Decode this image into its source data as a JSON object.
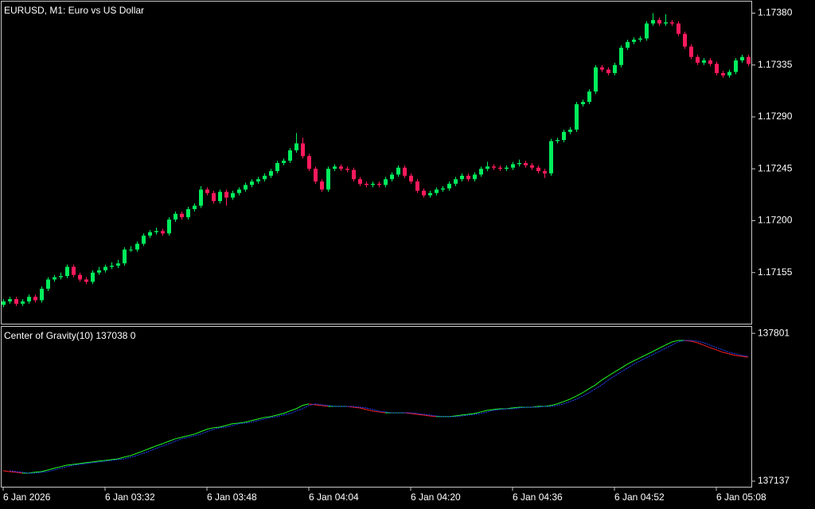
{
  "chart_data": [
    {
      "type": "candlestick",
      "title": "EURUSD, M1:  Euro vs US Dollar",
      "categories": [
        "6 Jan 2026",
        null,
        null,
        null,
        null,
        null,
        null,
        null,
        null,
        null,
        null,
        null,
        null,
        null,
        null,
        null,
        "6 Jan 03:32",
        null,
        null,
        null,
        null,
        null,
        null,
        null,
        null,
        null,
        null,
        null,
        null,
        null,
        null,
        null,
        "6 Jan 03:48",
        null,
        null,
        null,
        null,
        null,
        null,
        null,
        null,
        null,
        null,
        null,
        null,
        null,
        null,
        null,
        "6 Jan 04:04",
        null,
        null,
        null,
        null,
        null,
        null,
        null,
        null,
        null,
        null,
        null,
        null,
        null,
        null,
        null,
        "6 Jan 04:20",
        null,
        null,
        null,
        null,
        null,
        null,
        null,
        null,
        null,
        null,
        null,
        null,
        null,
        null,
        null,
        "6 Jan 04:36",
        null,
        null,
        null,
        null,
        null,
        null,
        null,
        null,
        null,
        null,
        null,
        null,
        null,
        null,
        null,
        "6 Jan 04:52",
        null,
        null,
        null,
        null,
        null,
        null,
        null,
        null,
        null,
        null,
        null,
        null,
        null,
        null,
        null,
        "6 Jan 05:08",
        null,
        null,
        null,
        null,
        null
      ],
      "open": [
        1.17127,
        1.1713,
        1.17132,
        1.17128,
        1.1713,
        1.17134,
        1.17131,
        1.17141,
        1.17149,
        1.17151,
        1.17152,
        1.1716,
        1.17153,
        1.17149,
        1.17147,
        1.17155,
        1.17157,
        1.1716,
        1.17161,
        1.17163,
        1.17175,
        1.17175,
        1.1718,
        1.17187,
        1.1719,
        1.17191,
        1.17189,
        1.17201,
        1.17206,
        1.17203,
        1.1721,
        1.17213,
        1.17227,
        1.17224,
        1.17217,
        1.17225,
        1.1722,
        1.17224,
        1.17227,
        1.17231,
        1.17234,
        1.17236,
        1.17239,
        1.17243,
        1.1725,
        1.17252,
        1.17261,
        1.17267,
        1.17256,
        1.17245,
        1.17234,
        1.17227,
        1.17245,
        1.17247,
        1.17245,
        1.17244,
        1.17236,
        1.17232,
        1.17231,
        1.17232,
        1.17231,
        1.17236,
        1.1724,
        1.17246,
        1.17239,
        1.17234,
        1.17226,
        1.17222,
        1.17224,
        1.17227,
        1.17228,
        1.17232,
        1.17236,
        1.17239,
        1.17236,
        1.1724,
        1.17245,
        1.17247,
        1.17246,
        1.17245,
        1.17246,
        1.17249,
        1.1725,
        1.17248,
        1.17246,
        1.17243,
        1.17241,
        1.17269,
        1.1727,
        1.17277,
        1.17279,
        1.17301,
        1.17303,
        1.17312,
        1.17333,
        1.17331,
        1.17328,
        1.17335,
        1.1735,
        1.17355,
        1.17357,
        1.17358,
        1.17371,
        1.17374,
        1.17371,
        1.17372,
        1.17371,
        1.17362,
        1.17351,
        1.17342,
        1.17337,
        1.17339,
        1.17336,
        1.17328,
        1.17326,
        1.17329,
        1.17339,
        1.17342
      ],
      "high": [
        1.17132,
        1.17134,
        1.17134,
        1.17132,
        1.17136,
        1.17136,
        1.17143,
        1.17151,
        1.17153,
        1.17155,
        1.17162,
        1.17162,
        1.17155,
        1.17151,
        1.17157,
        1.1716,
        1.17162,
        1.17164,
        1.17166,
        1.17177,
        1.17178,
        1.17182,
        1.17189,
        1.17192,
        1.17194,
        1.17193,
        1.17203,
        1.17208,
        1.17208,
        1.17212,
        1.17215,
        1.1723,
        1.17229,
        1.17226,
        1.17227,
        1.17227,
        1.17226,
        1.17229,
        1.17233,
        1.17236,
        1.17238,
        1.17241,
        1.17245,
        1.17252,
        1.17254,
        1.17263,
        1.17276,
        1.17272,
        1.17258,
        1.17247,
        1.17236,
        1.17247,
        1.17249,
        1.17249,
        1.17247,
        1.17246,
        1.17238,
        1.17234,
        1.17234,
        1.17234,
        1.17238,
        1.17242,
        1.17248,
        1.17248,
        1.17241,
        1.17236,
        1.17228,
        1.17226,
        1.17229,
        1.1723,
        1.17234,
        1.17238,
        1.17241,
        1.17241,
        1.17242,
        1.17247,
        1.17251,
        1.17249,
        1.17248,
        1.17248,
        1.17251,
        1.17253,
        1.17252,
        1.1725,
        1.17248,
        1.17245,
        1.17271,
        1.17272,
        1.17279,
        1.17281,
        1.17303,
        1.17305,
        1.17314,
        1.17335,
        1.17335,
        1.17333,
        1.17337,
        1.17352,
        1.17357,
        1.17359,
        1.1736,
        1.17373,
        1.1738,
        1.17376,
        1.17379,
        1.17374,
        1.17373,
        1.17364,
        1.17353,
        1.17344,
        1.17341,
        1.17341,
        1.17338,
        1.1733,
        1.17331,
        1.17341,
        1.17344,
        1.17344
      ],
      "low": [
        1.17125,
        1.17128,
        1.17126,
        1.17126,
        1.17128,
        1.17129,
        1.17129,
        1.17139,
        1.17147,
        1.17149,
        1.1715,
        1.17151,
        1.17147,
        1.17145,
        1.17145,
        1.17153,
        1.17155,
        1.17158,
        1.17159,
        1.17161,
        1.17173,
        1.17173,
        1.17178,
        1.17185,
        1.17188,
        1.17187,
        1.17187,
        1.17199,
        1.17201,
        1.17201,
        1.17208,
        1.17211,
        1.17222,
        1.17215,
        1.17215,
        1.17213,
        1.17218,
        1.17222,
        1.17225,
        1.17229,
        1.17232,
        1.17234,
        1.17237,
        1.17241,
        1.17248,
        1.1725,
        1.17259,
        1.17254,
        1.17243,
        1.17232,
        1.17225,
        1.17225,
        1.17243,
        1.17243,
        1.17242,
        1.17234,
        1.1723,
        1.17229,
        1.17229,
        1.17229,
        1.17229,
        1.17234,
        1.17238,
        1.17237,
        1.17232,
        1.17224,
        1.1722,
        1.1722,
        1.17222,
        1.17225,
        1.17226,
        1.1723,
        1.17234,
        1.17234,
        1.17234,
        1.17238,
        1.17243,
        1.17244,
        1.17243,
        1.17243,
        1.17244,
        1.17247,
        1.17246,
        1.17244,
        1.17241,
        1.17237,
        1.17239,
        1.17267,
        1.17268,
        1.17275,
        1.17277,
        1.17299,
        1.17301,
        1.1731,
        1.17329,
        1.17326,
        1.17326,
        1.17333,
        1.17348,
        1.17353,
        1.17355,
        1.17356,
        1.17369,
        1.17369,
        1.17369,
        1.17369,
        1.1736,
        1.17349,
        1.1734,
        1.17335,
        1.17335,
        1.17334,
        1.17326,
        1.17324,
        1.17324,
        1.17327,
        1.17337,
        1.17334
      ],
      "close": [
        1.1713,
        1.17132,
        1.17128,
        1.1713,
        1.17134,
        1.17131,
        1.17141,
        1.17149,
        1.17151,
        1.17152,
        1.1716,
        1.17153,
        1.17149,
        1.17147,
        1.17155,
        1.17157,
        1.1716,
        1.17161,
        1.17163,
        1.17175,
        1.17175,
        1.1718,
        1.17187,
        1.1719,
        1.17191,
        1.17189,
        1.17201,
        1.17206,
        1.17203,
        1.1721,
        1.17213,
        1.17227,
        1.17224,
        1.17217,
        1.17225,
        1.1722,
        1.17224,
        1.17227,
        1.17231,
        1.17234,
        1.17236,
        1.17239,
        1.17243,
        1.1725,
        1.17252,
        1.17261,
        1.17267,
        1.17256,
        1.17245,
        1.17234,
        1.17227,
        1.17245,
        1.17247,
        1.17245,
        1.17244,
        1.17236,
        1.17232,
        1.17231,
        1.17232,
        1.17231,
        1.17236,
        1.1724,
        1.17246,
        1.17239,
        1.17234,
        1.17226,
        1.17222,
        1.17224,
        1.17227,
        1.17228,
        1.17232,
        1.17236,
        1.17239,
        1.17236,
        1.1724,
        1.17245,
        1.17247,
        1.17246,
        1.17245,
        1.17246,
        1.17249,
        1.1725,
        1.17248,
        1.17246,
        1.17243,
        1.17241,
        1.17269,
        1.1727,
        1.17277,
        1.17279,
        1.17301,
        1.17303,
        1.17312,
        1.17333,
        1.17331,
        1.17328,
        1.17335,
        1.1735,
        1.17355,
        1.17357,
        1.17358,
        1.17371,
        1.17374,
        1.17371,
        1.17372,
        1.17371,
        1.17362,
        1.17351,
        1.17342,
        1.17337,
        1.17339,
        1.17336,
        1.17328,
        1.17326,
        1.17329,
        1.17339,
        1.17342,
        1.17336
      ],
      "up_color": "#00ee5c",
      "down_color": "#ff1a5c",
      "ylim": [
        1.1711,
        1.1739
      ],
      "yticks": [
        {
          "value": 1.1738,
          "label": "1.17380"
        },
        {
          "value": 1.17335,
          "label": "1.17335"
        },
        {
          "value": 1.1729,
          "label": "1.17290"
        },
        {
          "value": 1.17245,
          "label": "1.17245"
        },
        {
          "value": 1.172,
          "label": "1.17200"
        },
        {
          "value": 1.17155,
          "label": "1.17155"
        }
      ],
      "grid": false
    },
    {
      "type": "line",
      "title": "Center of Gravity(10) 137038 0",
      "series": [
        {
          "up_color": "#22ff22",
          "down_color": "#ff2020",
          "values": [
            137184,
            137180,
            137177,
            137173,
            137173,
            137177,
            137180,
            137187,
            137195,
            137202,
            137209,
            137212,
            137216,
            137220,
            137223,
            137227,
            137230,
            137234,
            137237,
            137245,
            137252,
            137262,
            137273,
            137284,
            137295,
            137305,
            137316,
            137327,
            137334,
            137341,
            137348,
            137359,
            137370,
            137377,
            137380,
            137387,
            137395,
            137398,
            137402,
            137409,
            137416,
            137423,
            137427,
            137434,
            137441,
            137452,
            137462,
            137477,
            137484,
            137480,
            137477,
            137473,
            137473,
            137473,
            137473,
            137469,
            137466,
            137459,
            137452,
            137448,
            137444,
            137444,
            137444,
            137444,
            137441,
            137437,
            137434,
            137430,
            137427,
            137427,
            137427,
            137430,
            137434,
            137437,
            137441,
            137448,
            137455,
            137459,
            137462,
            137462,
            137466,
            137469,
            137469,
            137469,
            137473,
            137473,
            137477,
            137484,
            137494,
            137505,
            137519,
            137534,
            137552,
            137569,
            137591,
            137609,
            137627,
            137644,
            137662,
            137677,
            137691,
            137705,
            137719,
            137734,
            137748,
            137762,
            137769,
            137769,
            137766,
            137759,
            137748,
            137737,
            137727,
            137716,
            137709,
            137702,
            137698,
            137694
          ]
        },
        {
          "color": "#2244ff",
          "values": [
            null,
            137184,
            137180,
            137177,
            137173,
            137173,
            137177,
            137180,
            137187,
            137195,
            137202,
            137209,
            137212,
            137216,
            137220,
            137223,
            137227,
            137230,
            137234,
            137237,
            137245,
            137252,
            137262,
            137273,
            137284,
            137295,
            137305,
            137316,
            137327,
            137334,
            137341,
            137348,
            137359,
            137370,
            137377,
            137380,
            137387,
            137395,
            137398,
            137402,
            137409,
            137416,
            137423,
            137427,
            137434,
            137441,
            137452,
            137462,
            137477,
            137484,
            137480,
            137477,
            137473,
            137473,
            137473,
            137473,
            137469,
            137466,
            137459,
            137452,
            137448,
            137444,
            137444,
            137444,
            137444,
            137441,
            137437,
            137434,
            137430,
            137427,
            137427,
            137427,
            137430,
            137434,
            137437,
            137441,
            137448,
            137455,
            137459,
            137462,
            137462,
            137466,
            137469,
            137469,
            137469,
            137473,
            137473,
            137477,
            137484,
            137494,
            137505,
            137519,
            137534,
            137552,
            137569,
            137591,
            137609,
            137627,
            137644,
            137662,
            137677,
            137691,
            137705,
            137719,
            137734,
            137748,
            137762,
            137769,
            137769,
            137766,
            137759,
            137748,
            137737,
            137727,
            137716,
            137709,
            137702,
            137698
          ]
        }
      ],
      "ylim": [
        137112,
        137830
      ],
      "yticks": [
        137801,
        137137
      ],
      "grid": false
    }
  ]
}
